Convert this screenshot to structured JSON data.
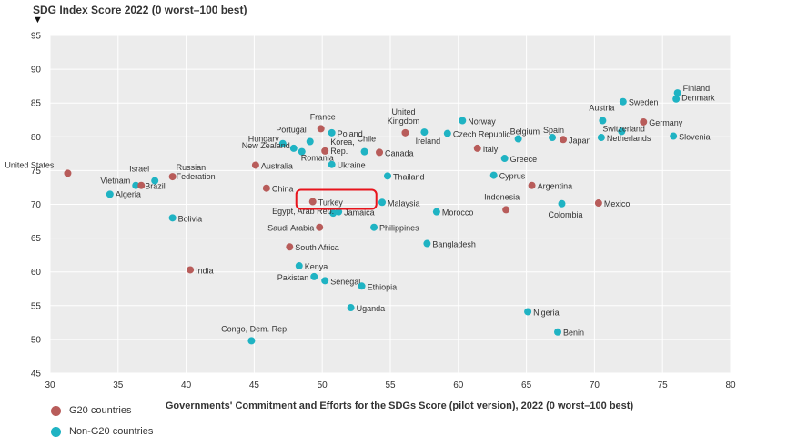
{
  "chart_data": {
    "type": "scatter",
    "title": "SDG Index Score 2022 (0 worst–100 best)",
    "title_marker": "▼",
    "xlabel": "Governments' Commitment and Efforts for the SDGs Score (pilot version), 2022 (0 worst–100 best)",
    "ylabel": "SDG Index Score 2022 (0 worst–100 best)",
    "xlim": [
      30,
      80
    ],
    "ylim": [
      45,
      95
    ],
    "xticks": [
      30,
      35,
      40,
      45,
      50,
      55,
      60,
      65,
      70,
      75,
      80
    ],
    "yticks": [
      45,
      50,
      55,
      60,
      65,
      70,
      75,
      80,
      85,
      90,
      95
    ],
    "grid": true,
    "colors": {
      "g20": "#b85c5a",
      "non_g20": "#1fb3c3",
      "highlight": "#e8141c"
    },
    "legend": [
      {
        "name": "G20 countries",
        "group": "g20"
      },
      {
        "name": "Non-G20 countries",
        "group": "non_g20"
      }
    ],
    "highlight": {
      "country": "Turkey",
      "shape": "rounded-rectangle",
      "color": "#e8141c"
    },
    "points": [
      {
        "label": "United States",
        "x": 31.3,
        "y": 74.6,
        "group": "g20"
      },
      {
        "label": "Vietnam",
        "x": 36.3,
        "y": 72.8,
        "group": "non_g20"
      },
      {
        "label": "Brazil",
        "x": 36.7,
        "y": 72.8,
        "group": "g20"
      },
      {
        "label": "Algeria",
        "x": 34.4,
        "y": 71.5,
        "group": "non_g20"
      },
      {
        "label": "Israel",
        "x": 37.7,
        "y": 73.5,
        "group": "non_g20"
      },
      {
        "label": "Russian\nFederation",
        "x": 39.0,
        "y": 74.1,
        "group": "g20"
      },
      {
        "label": "Bolivia",
        "x": 39.0,
        "y": 68.0,
        "group": "non_g20"
      },
      {
        "label": "India",
        "x": 40.3,
        "y": 60.3,
        "group": "g20"
      },
      {
        "label": "Australia",
        "x": 45.1,
        "y": 75.8,
        "group": "g20"
      },
      {
        "label": "China",
        "x": 45.9,
        "y": 72.4,
        "group": "g20"
      },
      {
        "label": "Congo, Dem. Rep.",
        "x": 44.8,
        "y": 49.8,
        "group": "non_g20"
      },
      {
        "label": "Hungary",
        "x": 47.1,
        "y": 79.0,
        "group": "non_g20"
      },
      {
        "label": "New Zealand",
        "x": 47.9,
        "y": 78.3,
        "group": "non_g20"
      },
      {
        "label": "Romania",
        "x": 48.5,
        "y": 77.8,
        "group": "non_g20"
      },
      {
        "label": "Portugal",
        "x": 49.1,
        "y": 79.3,
        "group": "non_g20"
      },
      {
        "label": "France",
        "x": 49.9,
        "y": 81.2,
        "group": "g20"
      },
      {
        "label": "Poland",
        "x": 50.7,
        "y": 80.6,
        "group": "non_g20"
      },
      {
        "label": "Korea,\nRep.",
        "x": 50.2,
        "y": 77.9,
        "group": "g20"
      },
      {
        "label": "Ukraine",
        "x": 50.7,
        "y": 75.9,
        "group": "non_g20"
      },
      {
        "label": "Chile",
        "x": 53.1,
        "y": 77.8,
        "group": "non_g20"
      },
      {
        "label": "Canada",
        "x": 54.2,
        "y": 77.7,
        "group": "g20"
      },
      {
        "label": "Turkey",
        "x": 49.3,
        "y": 70.4,
        "group": "g20"
      },
      {
        "label": "Egypt, Arab Rep.",
        "x": 50.8,
        "y": 68.7,
        "group": "non_g20"
      },
      {
        "label": "Jamaica",
        "x": 51.2,
        "y": 68.9,
        "group": "non_g20"
      },
      {
        "label": "Saudi Arabia",
        "x": 49.8,
        "y": 66.6,
        "group": "g20"
      },
      {
        "label": "South Africa",
        "x": 47.6,
        "y": 63.7,
        "group": "g20"
      },
      {
        "label": "Kenya",
        "x": 48.3,
        "y": 60.9,
        "group": "non_g20"
      },
      {
        "label": "Pakistan",
        "x": 49.4,
        "y": 59.3,
        "group": "non_g20"
      },
      {
        "label": "Senegal",
        "x": 50.2,
        "y": 58.7,
        "group": "non_g20"
      },
      {
        "label": "Ethiopia",
        "x": 52.9,
        "y": 57.9,
        "group": "non_g20"
      },
      {
        "label": "Uganda",
        "x": 52.1,
        "y": 54.7,
        "group": "non_g20"
      },
      {
        "label": "Philippines",
        "x": 53.8,
        "y": 66.6,
        "group": "non_g20"
      },
      {
        "label": "Malaysia",
        "x": 54.4,
        "y": 70.3,
        "group": "non_g20"
      },
      {
        "label": "Thailand",
        "x": 54.8,
        "y": 74.2,
        "group": "non_g20"
      },
      {
        "label": "United\nKingdom",
        "x": 56.1,
        "y": 80.6,
        "group": "g20"
      },
      {
        "label": "Ireland",
        "x": 57.5,
        "y": 80.7,
        "group": "non_g20"
      },
      {
        "label": "Czech Republic",
        "x": 59.2,
        "y": 80.5,
        "group": "non_g20"
      },
      {
        "label": "Norway",
        "x": 60.3,
        "y": 82.4,
        "group": "non_g20"
      },
      {
        "label": "Italy",
        "x": 61.4,
        "y": 78.3,
        "group": "g20"
      },
      {
        "label": "Morocco",
        "x": 58.4,
        "y": 68.9,
        "group": "non_g20"
      },
      {
        "label": "Bangladesh",
        "x": 57.7,
        "y": 64.2,
        "group": "non_g20"
      },
      {
        "label": "Cyprus",
        "x": 62.6,
        "y": 74.3,
        "group": "non_g20"
      },
      {
        "label": "Greece",
        "x": 63.4,
        "y": 76.8,
        "group": "non_g20"
      },
      {
        "label": "Belgium",
        "x": 64.4,
        "y": 79.7,
        "group": "non_g20"
      },
      {
        "label": "Spain",
        "x": 66.9,
        "y": 79.9,
        "group": "non_g20"
      },
      {
        "label": "Japan",
        "x": 67.7,
        "y": 79.6,
        "group": "g20"
      },
      {
        "label": "Argentina",
        "x": 65.4,
        "y": 72.8,
        "group": "g20"
      },
      {
        "label": "Indonesia",
        "x": 63.5,
        "y": 69.2,
        "group": "g20"
      },
      {
        "label": "Colombia",
        "x": 67.6,
        "y": 70.1,
        "group": "non_g20"
      },
      {
        "label": "Nigeria",
        "x": 65.1,
        "y": 54.1,
        "group": "non_g20"
      },
      {
        "label": "Benin",
        "x": 67.3,
        "y": 51.1,
        "group": "non_g20"
      },
      {
        "label": "Mexico",
        "x": 70.3,
        "y": 70.2,
        "group": "g20"
      },
      {
        "label": "Austria",
        "x": 70.6,
        "y": 82.4,
        "group": "non_g20"
      },
      {
        "label": "Netherlands",
        "x": 70.5,
        "y": 79.9,
        "group": "non_g20"
      },
      {
        "label": "Sweden",
        "x": 72.1,
        "y": 85.2,
        "group": "non_g20"
      },
      {
        "label": "Switzerland",
        "x": 72.0,
        "y": 80.8,
        "group": "non_g20"
      },
      {
        "label": "Germany",
        "x": 73.6,
        "y": 82.2,
        "group": "g20"
      },
      {
        "label": "Finland",
        "x": 76.1,
        "y": 86.5,
        "group": "non_g20"
      },
      {
        "label": "Denmark",
        "x": 76.0,
        "y": 85.6,
        "group": "non_g20"
      },
      {
        "label": "Slovenia",
        "x": 75.8,
        "y": 80.1,
        "group": "non_g20"
      }
    ]
  }
}
